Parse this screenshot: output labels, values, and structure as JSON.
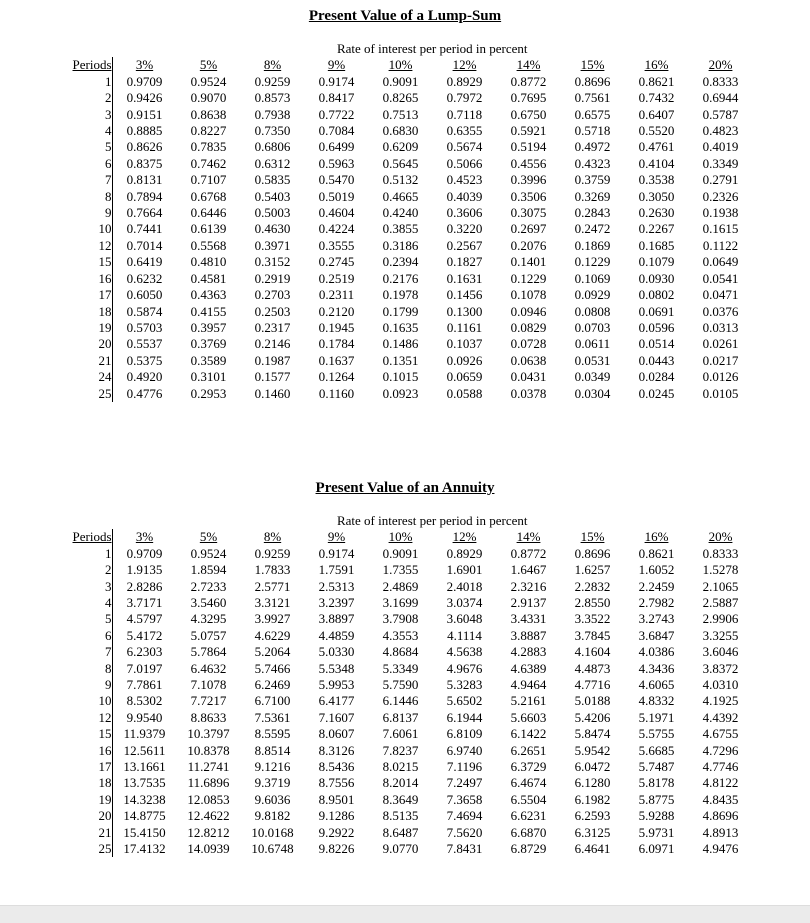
{
  "tables": [
    {
      "title": "Present Value of a Lump-Sum",
      "subtitle": "Rate of interest per period in percent",
      "period_header": "Periods",
      "rate_headers": [
        "3%",
        "5%",
        "8%",
        "9%",
        "10%",
        "12%",
        "14%",
        "15%",
        "16%",
        "20%"
      ],
      "rows": [
        {
          "period": "1",
          "values": [
            "0.9709",
            "0.9524",
            "0.9259",
            "0.9174",
            "0.9091",
            "0.8929",
            "0.8772",
            "0.8696",
            "0.8621",
            "0.8333"
          ]
        },
        {
          "period": "2",
          "values": [
            "0.9426",
            "0.9070",
            "0.8573",
            "0.8417",
            "0.8265",
            "0.7972",
            "0.7695",
            "0.7561",
            "0.7432",
            "0.6944"
          ]
        },
        {
          "period": "3",
          "values": [
            "0.9151",
            "0.8638",
            "0.7938",
            "0.7722",
            "0.7513",
            "0.7118",
            "0.6750",
            "0.6575",
            "0.6407",
            "0.5787"
          ]
        },
        {
          "period": "4",
          "values": [
            "0.8885",
            "0.8227",
            "0.7350",
            "0.7084",
            "0.6830",
            "0.6355",
            "0.5921",
            "0.5718",
            "0.5520",
            "0.4823"
          ]
        },
        {
          "period": "5",
          "values": [
            "0.8626",
            "0.7835",
            "0.6806",
            "0.6499",
            "0.6209",
            "0.5674",
            "0.5194",
            "0.4972",
            "0.4761",
            "0.4019"
          ]
        },
        {
          "period": "6",
          "values": [
            "0.8375",
            "0.7462",
            "0.6312",
            "0.5963",
            "0.5645",
            "0.5066",
            "0.4556",
            "0.4323",
            "0.4104",
            "0.3349"
          ]
        },
        {
          "period": "7",
          "values": [
            "0.8131",
            "0.7107",
            "0.5835",
            "0.5470",
            "0.5132",
            "0.4523",
            "0.3996",
            "0.3759",
            "0.3538",
            "0.2791"
          ]
        },
        {
          "period": "8",
          "values": [
            "0.7894",
            "0.6768",
            "0.5403",
            "0.5019",
            "0.4665",
            "0.4039",
            "0.3506",
            "0.3269",
            "0.3050",
            "0.2326"
          ]
        },
        {
          "period": "9",
          "values": [
            "0.7664",
            "0.6446",
            "0.5003",
            "0.4604",
            "0.4240",
            "0.3606",
            "0.3075",
            "0.2843",
            "0.2630",
            "0.1938"
          ]
        },
        {
          "period": "10",
          "values": [
            "0.7441",
            "0.6139",
            "0.4630",
            "0.4224",
            "0.3855",
            "0.3220",
            "0.2697",
            "0.2472",
            "0.2267",
            "0.1615"
          ]
        },
        {
          "period": "12",
          "values": [
            "0.7014",
            "0.5568",
            "0.3971",
            "0.3555",
            "0.3186",
            "0.2567",
            "0.2076",
            "0.1869",
            "0.1685",
            "0.1122"
          ]
        },
        {
          "period": "15",
          "values": [
            "0.6419",
            "0.4810",
            "0.3152",
            "0.2745",
            "0.2394",
            "0.1827",
            "0.1401",
            "0.1229",
            "0.1079",
            "0.0649"
          ]
        },
        {
          "period": "16",
          "values": [
            "0.6232",
            "0.4581",
            "0.2919",
            "0.2519",
            "0.2176",
            "0.1631",
            "0.1229",
            "0.1069",
            "0.0930",
            "0.0541"
          ]
        },
        {
          "period": "17",
          "values": [
            "0.6050",
            "0.4363",
            "0.2703",
            "0.2311",
            "0.1978",
            "0.1456",
            "0.1078",
            "0.0929",
            "0.0802",
            "0.0471"
          ]
        },
        {
          "period": "18",
          "values": [
            "0.5874",
            "0.4155",
            "0.2503",
            "0.2120",
            "0.1799",
            "0.1300",
            "0.0946",
            "0.0808",
            "0.0691",
            "0.0376"
          ]
        },
        {
          "period": "19",
          "values": [
            "0.5703",
            "0.3957",
            "0.2317",
            "0.1945",
            "0.1635",
            "0.1161",
            "0.0829",
            "0.0703",
            "0.0596",
            "0.0313"
          ]
        },
        {
          "period": "20",
          "values": [
            "0.5537",
            "0.3769",
            "0.2146",
            "0.1784",
            "0.1486",
            "0.1037",
            "0.0728",
            "0.0611",
            "0.0514",
            "0.0261"
          ]
        },
        {
          "period": "21",
          "values": [
            "0.5375",
            "0.3589",
            "0.1987",
            "0.1637",
            "0.1351",
            "0.0926",
            "0.0638",
            "0.0531",
            "0.0443",
            "0.0217"
          ]
        },
        {
          "period": "24",
          "values": [
            "0.4920",
            "0.3101",
            "0.1577",
            "0.1264",
            "0.1015",
            "0.0659",
            "0.0431",
            "0.0349",
            "0.0284",
            "0.0126"
          ]
        },
        {
          "period": "25",
          "values": [
            "0.4776",
            "0.2953",
            "0.1460",
            "0.1160",
            "0.0923",
            "0.0588",
            "0.0378",
            "0.0304",
            "0.0245",
            "0.0105"
          ]
        }
      ]
    },
    {
      "title": "Present Value of an Annuity",
      "subtitle": "Rate of interest per period in percent",
      "period_header": "Periods",
      "rate_headers": [
        "3%",
        "5%",
        "8%",
        "9%",
        "10%",
        "12%",
        "14%",
        "15%",
        "16%",
        "20%"
      ],
      "rows": [
        {
          "period": "1",
          "values": [
            "0.9709",
            "0.9524",
            "0.9259",
            "0.9174",
            "0.9091",
            "0.8929",
            "0.8772",
            "0.8696",
            "0.8621",
            "0.8333"
          ]
        },
        {
          "period": "2",
          "values": [
            "1.9135",
            "1.8594",
            "1.7833",
            "1.7591",
            "1.7355",
            "1.6901",
            "1.6467",
            "1.6257",
            "1.6052",
            "1.5278"
          ]
        },
        {
          "period": "3",
          "values": [
            "2.8286",
            "2.7233",
            "2.5771",
            "2.5313",
            "2.4869",
            "2.4018",
            "2.3216",
            "2.2832",
            "2.2459",
            "2.1065"
          ]
        },
        {
          "period": "4",
          "values": [
            "3.7171",
            "3.5460",
            "3.3121",
            "3.2397",
            "3.1699",
            "3.0374",
            "2.9137",
            "2.8550",
            "2.7982",
            "2.5887"
          ]
        },
        {
          "period": "5",
          "values": [
            "4.5797",
            "4.3295",
            "3.9927",
            "3.8897",
            "3.7908",
            "3.6048",
            "3.4331",
            "3.3522",
            "3.2743",
            "2.9906"
          ]
        },
        {
          "period": "6",
          "values": [
            "5.4172",
            "5.0757",
            "4.6229",
            "4.4859",
            "4.3553",
            "4.1114",
            "3.8887",
            "3.7845",
            "3.6847",
            "3.3255"
          ]
        },
        {
          "period": "7",
          "values": [
            "6.2303",
            "5.7864",
            "5.2064",
            "5.0330",
            "4.8684",
            "4.5638",
            "4.2883",
            "4.1604",
            "4.0386",
            "3.6046"
          ]
        },
        {
          "period": "8",
          "values": [
            "7.0197",
            "6.4632",
            "5.7466",
            "5.5348",
            "5.3349",
            "4.9676",
            "4.6389",
            "4.4873",
            "4.3436",
            "3.8372"
          ]
        },
        {
          "period": "9",
          "values": [
            "7.7861",
            "7.1078",
            "6.2469",
            "5.9953",
            "5.7590",
            "5.3283",
            "4.9464",
            "4.7716",
            "4.6065",
            "4.0310"
          ]
        },
        {
          "period": "10",
          "values": [
            "8.5302",
            "7.7217",
            "6.7100",
            "6.4177",
            "6.1446",
            "5.6502",
            "5.2161",
            "5.0188",
            "4.8332",
            "4.1925"
          ]
        },
        {
          "period": "12",
          "values": [
            "9.9540",
            "8.8633",
            "7.5361",
            "7.1607",
            "6.8137",
            "6.1944",
            "5.6603",
            "5.4206",
            "5.1971",
            "4.4392"
          ]
        },
        {
          "period": "15",
          "values": [
            "11.9379",
            "10.3797",
            "8.5595",
            "8.0607",
            "7.6061",
            "6.8109",
            "6.1422",
            "5.8474",
            "5.5755",
            "4.6755"
          ]
        },
        {
          "period": "16",
          "values": [
            "12.5611",
            "10.8378",
            "8.8514",
            "8.3126",
            "7.8237",
            "6.9740",
            "6.2651",
            "5.9542",
            "5.6685",
            "4.7296"
          ]
        },
        {
          "period": "17",
          "values": [
            "13.1661",
            "11.2741",
            "9.1216",
            "8.5436",
            "8.0215",
            "7.1196",
            "6.3729",
            "6.0472",
            "5.7487",
            "4.7746"
          ]
        },
        {
          "period": "18",
          "values": [
            "13.7535",
            "11.6896",
            "9.3719",
            "8.7556",
            "8.2014",
            "7.2497",
            "6.4674",
            "6.1280",
            "5.8178",
            "4.8122"
          ]
        },
        {
          "period": "19",
          "values": [
            "14.3238",
            "12.0853",
            "9.6036",
            "8.9501",
            "8.3649",
            "7.3658",
            "6.5504",
            "6.1982",
            "5.8775",
            "4.8435"
          ]
        },
        {
          "period": "20",
          "values": [
            "14.8775",
            "12.4622",
            "9.8182",
            "9.1286",
            "8.5135",
            "7.4694",
            "6.6231",
            "6.2593",
            "5.9288",
            "4.8696"
          ]
        },
        {
          "period": "21",
          "values": [
            "15.4150",
            "12.8212",
            "10.0168",
            "9.2922",
            "8.6487",
            "7.5620",
            "6.6870",
            "6.3125",
            "5.9731",
            "4.8913"
          ]
        },
        {
          "period": "25",
          "values": [
            "17.4132",
            "14.0939",
            "10.6748",
            "9.8226",
            "9.0770",
            "7.8431",
            "6.8729",
            "6.4641",
            "6.0971",
            "4.9476"
          ]
        }
      ]
    }
  ]
}
